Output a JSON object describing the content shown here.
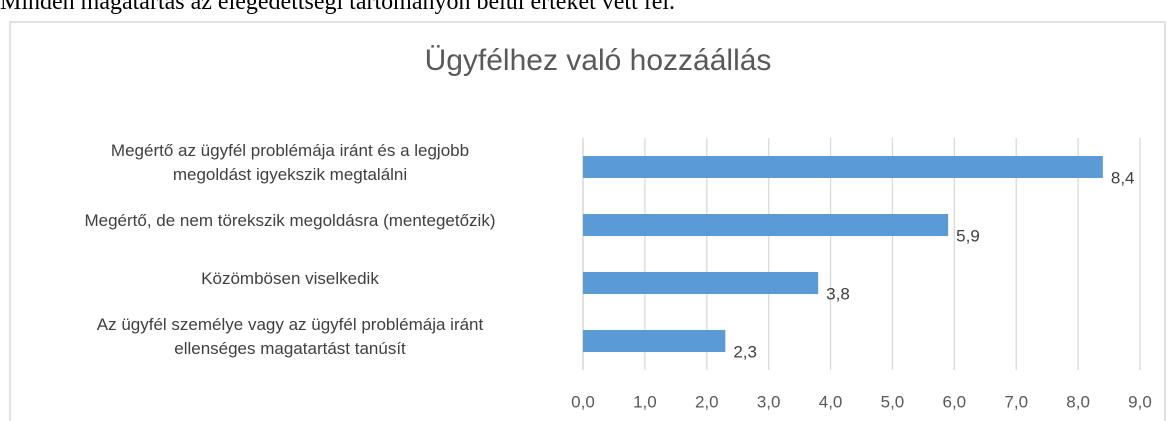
{
  "header_text": "Minden magatartás az elégedettségi tartományon belül értéket vett fel.",
  "chart_data": {
    "type": "barh",
    "title": "Ügyfélhez való hozzáállás",
    "categories": [
      "Megértő az ügyfél problémája iránt és a legjobb\nmegoldást igyekszik megtalálni",
      "Megértő, de nem törekszik megoldásra (mentegetőzik)",
      "Közömbösen viselkedik",
      "Az ügyfél személye vagy az ügyfél problémája iránt\nellenséges magatartást tanúsít"
    ],
    "values": [
      8.4,
      5.9,
      3.8,
      2.3
    ],
    "value_labels": [
      "8,4",
      "5,9",
      "3,8",
      "2,3"
    ],
    "color": "#5b9bd5",
    "xlim": [
      0,
      9
    ],
    "xticks": [
      {
        "value": 0,
        "label": "0,0"
      },
      {
        "value": 1,
        "label": "1,0"
      },
      {
        "value": 2,
        "label": "2,0"
      },
      {
        "value": 3,
        "label": "3,0"
      },
      {
        "value": 4,
        "label": "4,0"
      },
      {
        "value": 5,
        "label": "5,0"
      },
      {
        "value": 6,
        "label": "6,0"
      },
      {
        "value": 7,
        "label": "7,0"
      },
      {
        "value": 8,
        "label": "8,0"
      },
      {
        "value": 9,
        "label": "9,0"
      }
    ],
    "grid": true
  }
}
